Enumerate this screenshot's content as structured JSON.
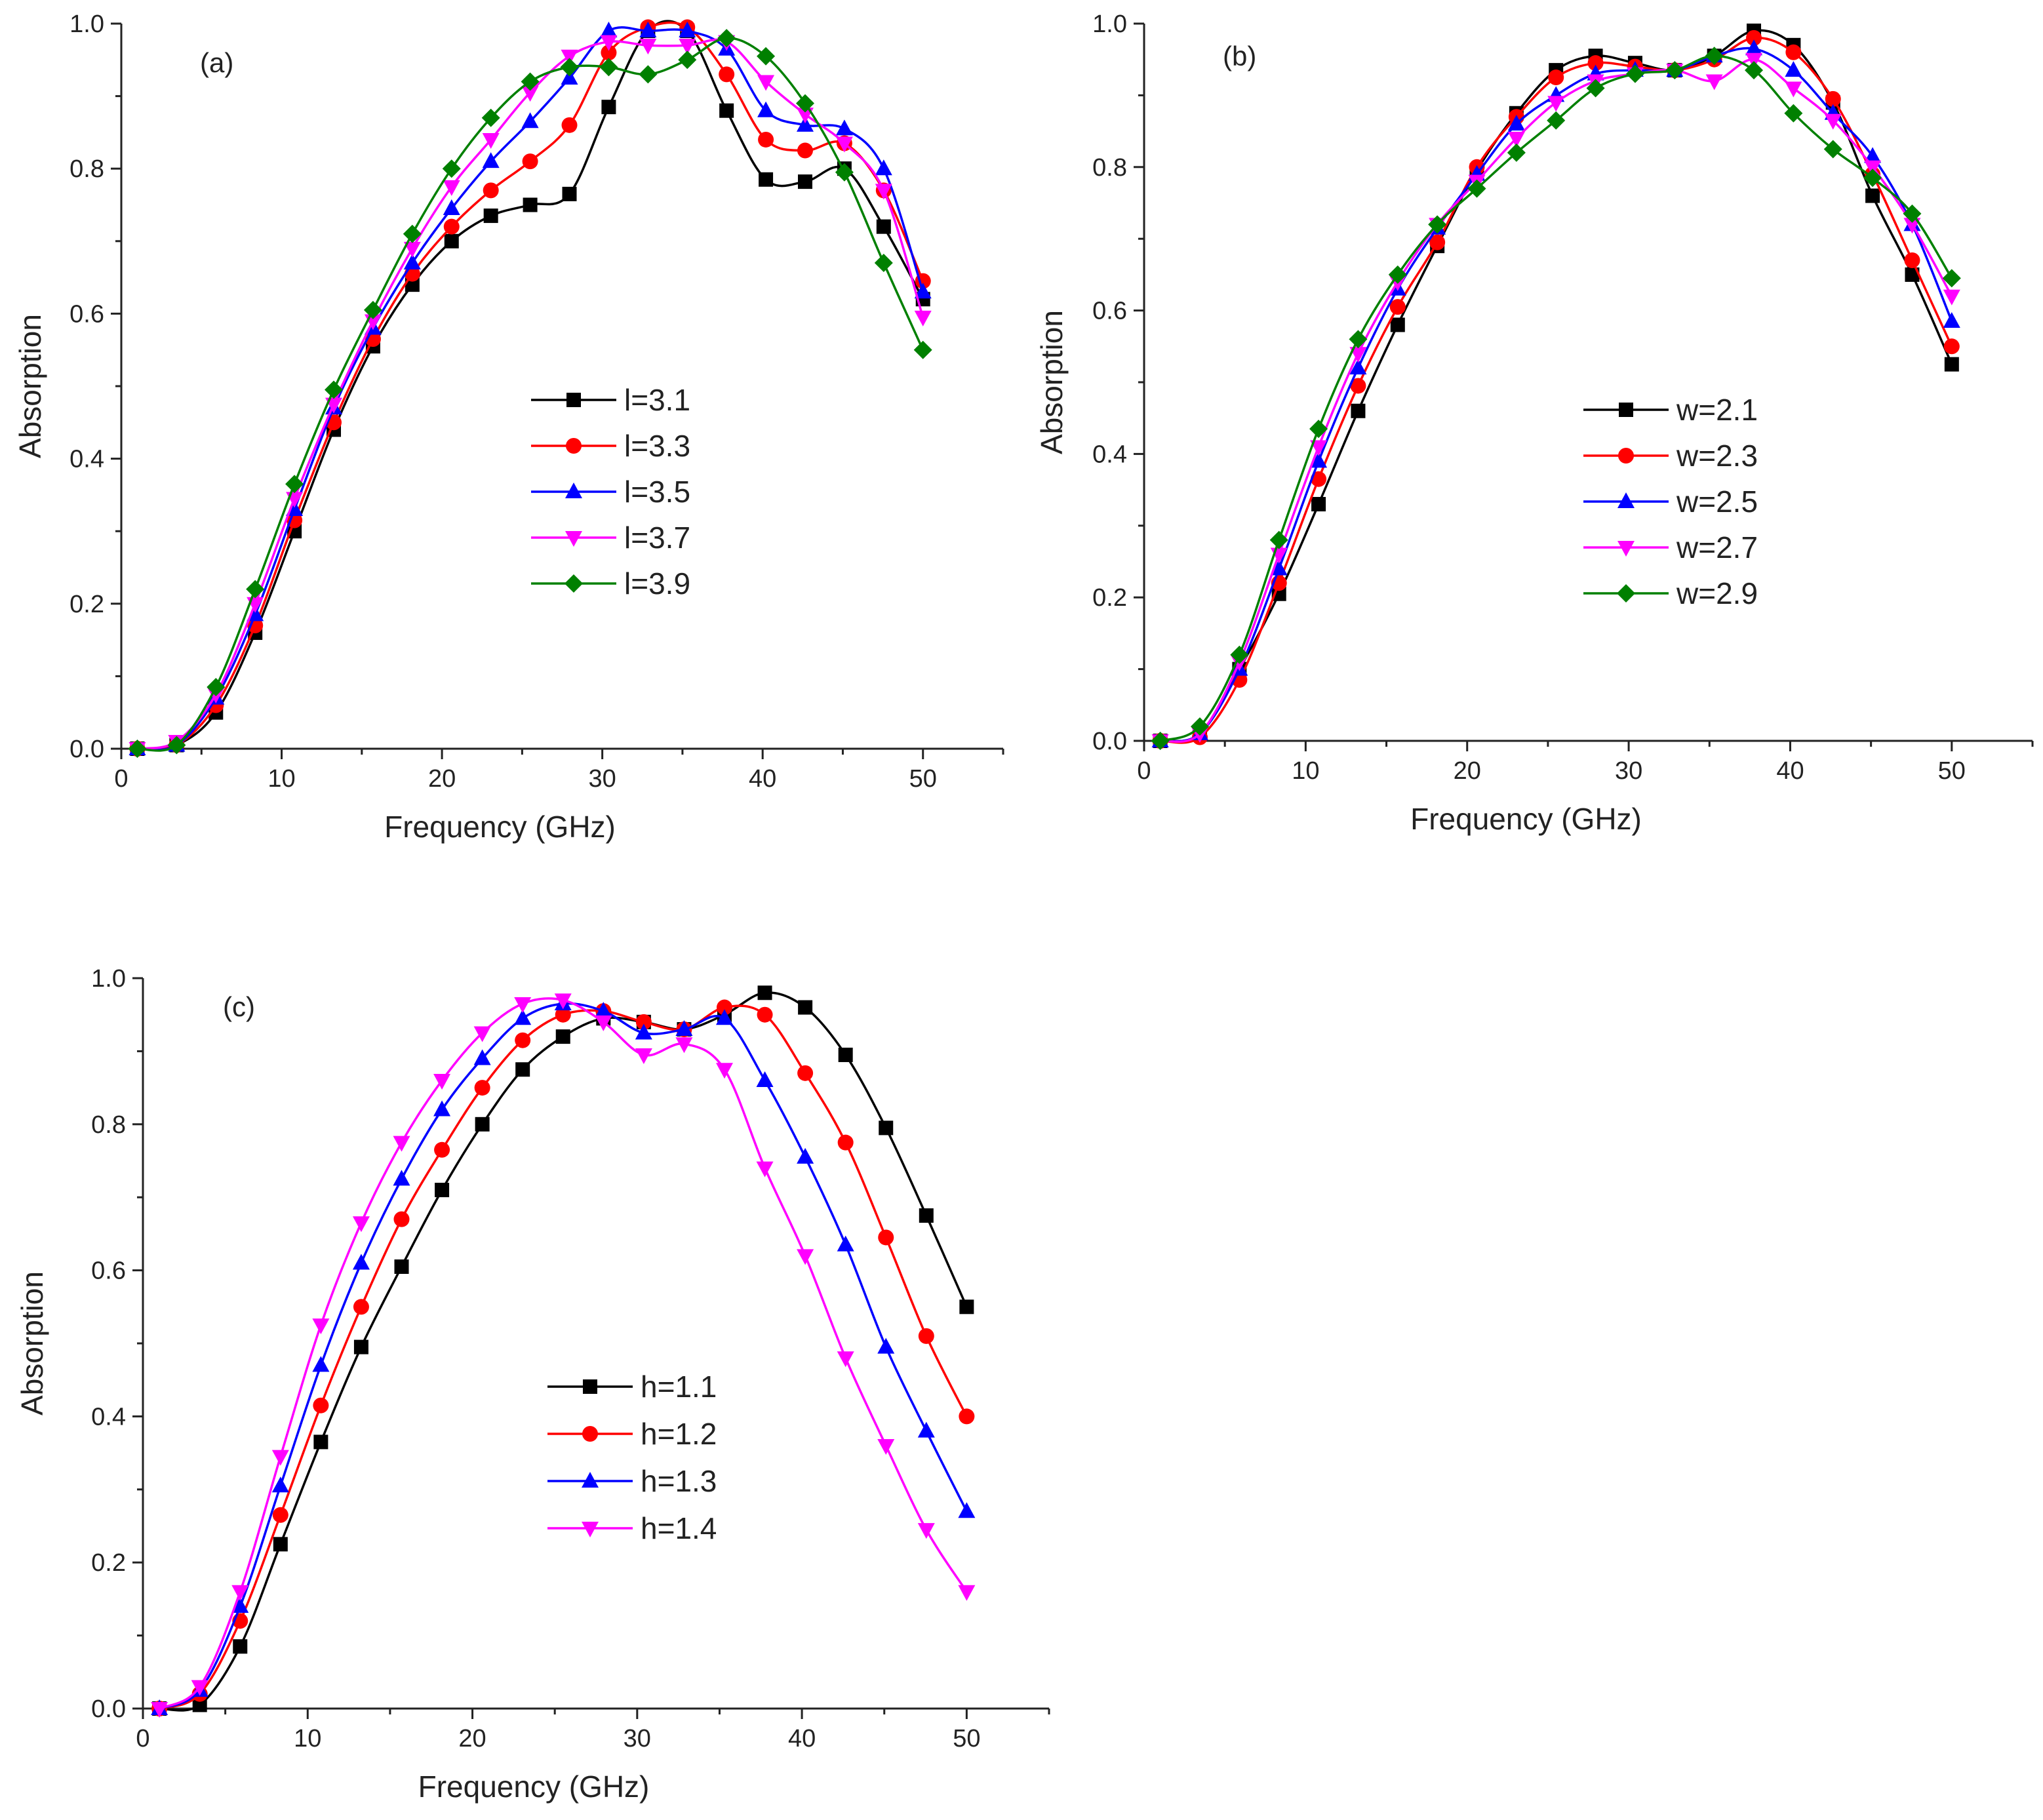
{
  "figure": {
    "panels_count": 3
  },
  "chart_data": [
    {
      "type": "line",
      "panel_label": "(a)",
      "xlabel": "Frequency (GHz)",
      "ylabel": "Absorption",
      "xlim": [
        0,
        55
      ],
      "ylim": [
        0,
        1.0
      ],
      "xticks": [
        0,
        10,
        20,
        30,
        40,
        50
      ],
      "yticks": [
        0.0,
        0.2,
        0.4,
        0.6,
        0.8,
        1.0
      ],
      "grid": false,
      "legend": "center",
      "x": [
        1,
        3.45,
        5.9,
        8.35,
        10.8,
        13.25,
        15.7,
        18.15,
        20.6,
        23.05,
        25.5,
        27.95,
        30.4,
        32.85,
        35.3,
        37.75,
        40.2,
        42.65,
        45.1,
        47.55,
        50
      ],
      "series": [
        {
          "name": "l=3.1",
          "color": "#000000",
          "marker": "square",
          "values": [
            0.0,
            0.005,
            0.05,
            0.16,
            0.3,
            0.44,
            0.555,
            0.64,
            0.7,
            0.735,
            0.75,
            0.765,
            0.885,
            0.99,
            0.99,
            0.88,
            0.785,
            0.782,
            0.8,
            0.72,
            0.62
          ]
        },
        {
          "name": "l=3.3",
          "color": "#ff0000",
          "marker": "circle",
          "values": [
            0.0,
            0.005,
            0.06,
            0.17,
            0.315,
            0.45,
            0.565,
            0.655,
            0.72,
            0.77,
            0.81,
            0.86,
            0.96,
            0.995,
            0.995,
            0.93,
            0.84,
            0.825,
            0.835,
            0.77,
            0.645
          ]
        },
        {
          "name": "l=3.5",
          "color": "#0000ff",
          "marker": "triangle-up",
          "values": [
            0.0,
            0.005,
            0.07,
            0.185,
            0.33,
            0.47,
            0.58,
            0.67,
            0.745,
            0.81,
            0.865,
            0.925,
            0.99,
            0.99,
            0.99,
            0.965,
            0.88,
            0.86,
            0.855,
            0.8,
            0.63
          ]
        },
        {
          "name": "l=3.7",
          "color": "#ff00ff",
          "marker": "triangle-down",
          "values": [
            0.0,
            0.01,
            0.075,
            0.2,
            0.345,
            0.475,
            0.59,
            0.69,
            0.775,
            0.84,
            0.905,
            0.955,
            0.975,
            0.97,
            0.97,
            0.975,
            0.92,
            0.875,
            0.835,
            0.77,
            0.595
          ]
        },
        {
          "name": "l=3.9",
          "color": "#008000",
          "marker": "diamond",
          "values": [
            0.0,
            0.005,
            0.085,
            0.22,
            0.365,
            0.495,
            0.605,
            0.71,
            0.8,
            0.87,
            0.92,
            0.94,
            0.94,
            0.93,
            0.95,
            0.98,
            0.955,
            0.89,
            0.795,
            0.67,
            0.55
          ]
        }
      ]
    },
    {
      "type": "line",
      "panel_label": "(b)",
      "xlabel": "Frequency (GHz)",
      "ylabel": "Absorption",
      "xlim": [
        0,
        55
      ],
      "ylim": [
        0,
        1.0
      ],
      "xticks": [
        0,
        10,
        20,
        30,
        40,
        50
      ],
      "yticks": [
        0.0,
        0.2,
        0.4,
        0.6,
        0.8,
        1.0
      ],
      "grid": false,
      "legend": "center-right",
      "x": [
        1,
        3.45,
        5.9,
        8.35,
        10.8,
        13.25,
        15.7,
        18.15,
        20.6,
        23.05,
        25.5,
        27.95,
        30.4,
        32.85,
        35.3,
        37.75,
        40.2,
        42.65,
        45.1,
        47.55,
        50
      ],
      "series": [
        {
          "name": "w=2.1",
          "color": "#000000",
          "marker": "square",
          "values": [
            0.0,
            0.01,
            0.1,
            0.205,
            0.33,
            0.46,
            0.58,
            0.69,
            0.795,
            0.875,
            0.935,
            0.955,
            0.945,
            0.935,
            0.955,
            0.99,
            0.97,
            0.89,
            0.76,
            0.65,
            0.525
          ]
        },
        {
          "name": "w=2.3",
          "color": "#ff0000",
          "marker": "circle",
          "values": [
            0.0,
            0.005,
            0.085,
            0.22,
            0.365,
            0.495,
            0.605,
            0.695,
            0.8,
            0.87,
            0.925,
            0.945,
            0.94,
            0.935,
            0.95,
            0.98,
            0.96,
            0.895,
            0.79,
            0.67,
            0.55
          ]
        },
        {
          "name": "w=2.5",
          "color": "#0000ff",
          "marker": "triangle-up",
          "values": [
            0.0,
            0.01,
            0.1,
            0.24,
            0.39,
            0.52,
            0.63,
            0.715,
            0.79,
            0.86,
            0.9,
            0.93,
            0.935,
            0.935,
            0.955,
            0.965,
            0.935,
            0.875,
            0.815,
            0.72,
            0.585
          ]
        },
        {
          "name": "w=2.7",
          "color": "#ff00ff",
          "marker": "triangle-down",
          "values": [
            0.0,
            0.01,
            0.11,
            0.26,
            0.41,
            0.54,
            0.64,
            0.72,
            0.78,
            0.84,
            0.89,
            0.92,
            0.93,
            0.935,
            0.92,
            0.95,
            0.91,
            0.865,
            0.8,
            0.72,
            0.62
          ]
        },
        {
          "name": "w=2.9",
          "color": "#008000",
          "marker": "diamond",
          "values": [
            0.0,
            0.02,
            0.12,
            0.28,
            0.435,
            0.56,
            0.65,
            0.72,
            0.77,
            0.82,
            0.865,
            0.91,
            0.93,
            0.935,
            0.955,
            0.935,
            0.875,
            0.825,
            0.785,
            0.735,
            0.645
          ]
        }
      ]
    },
    {
      "type": "line",
      "panel_label": "(c)",
      "xlabel": "Frequency (GHz)",
      "ylabel": "Absorption",
      "xlim": [
        0,
        55
      ],
      "ylim": [
        0,
        1.0
      ],
      "xticks": [
        0,
        10,
        20,
        30,
        40,
        50
      ],
      "yticks": [
        0.0,
        0.2,
        0.4,
        0.6,
        0.8,
        1.0
      ],
      "grid": false,
      "legend": "center",
      "x": [
        1,
        3.45,
        5.9,
        8.35,
        10.8,
        13.25,
        15.7,
        18.15,
        20.6,
        23.05,
        25.5,
        27.95,
        30.4,
        32.85,
        35.3,
        37.75,
        40.2,
        42.65,
        45.1,
        47.55,
        50
      ],
      "series": [
        {
          "name": "h=1.1",
          "color": "#000000",
          "marker": "square",
          "values": [
            0.0,
            0.005,
            0.085,
            0.225,
            0.365,
            0.495,
            0.605,
            0.71,
            0.8,
            0.875,
            0.92,
            0.945,
            0.94,
            0.93,
            0.95,
            0.98,
            0.96,
            0.895,
            0.795,
            0.675,
            0.55
          ]
        },
        {
          "name": "h=1.2",
          "color": "#ff0000",
          "marker": "circle",
          "values": [
            0.0,
            0.02,
            0.12,
            0.265,
            0.415,
            0.55,
            0.67,
            0.765,
            0.85,
            0.915,
            0.95,
            0.955,
            0.94,
            0.93,
            0.96,
            0.95,
            0.87,
            0.775,
            0.645,
            0.51,
            0.4
          ]
        },
        {
          "name": "h=1.3",
          "color": "#0000ff",
          "marker": "triangle-up",
          "values": [
            0.0,
            0.025,
            0.14,
            0.305,
            0.47,
            0.61,
            0.725,
            0.82,
            0.89,
            0.945,
            0.965,
            0.955,
            0.925,
            0.93,
            0.945,
            0.86,
            0.755,
            0.635,
            0.495,
            0.38,
            0.27
          ]
        },
        {
          "name": "h=1.4",
          "color": "#ff00ff",
          "marker": "triangle-down",
          "values": [
            0.0,
            0.03,
            0.16,
            0.345,
            0.525,
            0.665,
            0.775,
            0.86,
            0.925,
            0.965,
            0.97,
            0.94,
            0.895,
            0.91,
            0.875,
            0.74,
            0.62,
            0.48,
            0.36,
            0.245,
            0.16
          ]
        }
      ]
    }
  ]
}
